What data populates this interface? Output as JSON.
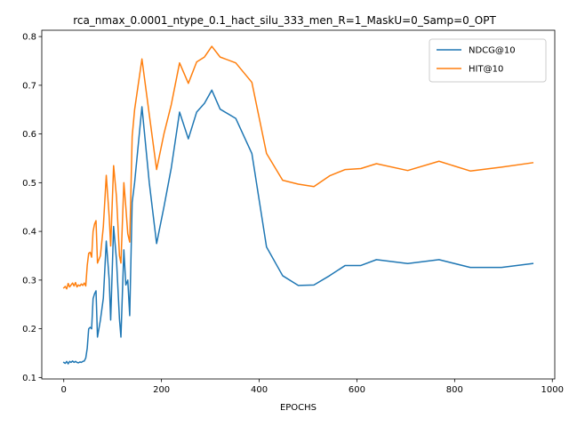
{
  "chart_data": {
    "type": "line",
    "title": "rca_nmax_0.0001_ntype_0.1_hact_silu_333_men_R=1_MaskU=0_Samp=0_OPT",
    "xlabel": "EPOCHS",
    "ylabel": "",
    "xlim": [
      -45,
      1005
    ],
    "ylim": [
      0.097,
      0.813
    ],
    "xticks": [
      0,
      200,
      400,
      600,
      800,
      1000
    ],
    "yticks": [
      0.1,
      0.2,
      0.3,
      0.4,
      0.5,
      0.6,
      0.7,
      0.8
    ],
    "xtick_labels": [
      "0",
      "200",
      "400",
      "600",
      "800",
      "1000"
    ],
    "ytick_labels": [
      "0.1",
      "0.2",
      "0.3",
      "0.4",
      "0.5",
      "0.6",
      "0.7",
      "0.8"
    ],
    "legend_position": "top-right",
    "grid": false,
    "series": [
      {
        "name": "NDCG@10",
        "color": "#1f77b4",
        "points": [
          [
            0,
            0.131
          ],
          [
            3,
            0.129
          ],
          [
            6,
            0.133
          ],
          [
            9,
            0.128
          ],
          [
            12,
            0.133
          ],
          [
            15,
            0.131
          ],
          [
            18,
            0.134
          ],
          [
            21,
            0.131
          ],
          [
            24,
            0.133
          ],
          [
            27,
            0.131
          ],
          [
            30,
            0.13
          ],
          [
            33,
            0.132
          ],
          [
            36,
            0.131
          ],
          [
            39,
            0.133
          ],
          [
            42,
            0.134
          ],
          [
            45,
            0.14
          ],
          [
            48,
            0.16
          ],
          [
            51,
            0.2
          ],
          [
            54,
            0.203
          ],
          [
            57,
            0.2
          ],
          [
            60,
            0.262
          ],
          [
            63,
            0.272
          ],
          [
            66,
            0.278
          ],
          [
            69,
            0.183
          ],
          [
            75,
            0.218
          ],
          [
            81,
            0.263
          ],
          [
            87,
            0.38
          ],
          [
            93,
            0.3
          ],
          [
            96,
            0.218
          ],
          [
            102,
            0.41
          ],
          [
            108,
            0.34
          ],
          [
            114,
            0.22
          ],
          [
            117,
            0.183
          ],
          [
            123,
            0.362
          ],
          [
            127,
            0.29
          ],
          [
            131,
            0.3
          ],
          [
            135,
            0.227
          ],
          [
            140,
            0.46
          ],
          [
            145,
            0.5
          ],
          [
            160,
            0.656
          ],
          [
            175,
            0.5
          ],
          [
            190,
            0.375
          ],
          [
            205,
            0.45
          ],
          [
            220,
            0.53
          ],
          [
            237,
            0.645
          ],
          [
            255,
            0.59
          ],
          [
            272,
            0.645
          ],
          [
            288,
            0.663
          ],
          [
            303,
            0.69
          ],
          [
            320,
            0.651
          ],
          [
            352,
            0.632
          ],
          [
            385,
            0.56
          ],
          [
            415,
            0.368
          ],
          [
            448,
            0.309
          ],
          [
            480,
            0.289
          ],
          [
            512,
            0.29
          ],
          [
            544,
            0.309
          ],
          [
            576,
            0.33
          ],
          [
            608,
            0.33
          ],
          [
            640,
            0.342
          ],
          [
            704,
            0.334
          ],
          [
            768,
            0.342
          ],
          [
            832,
            0.326
          ],
          [
            896,
            0.326
          ],
          [
            960,
            0.334
          ]
        ]
      },
      {
        "name": "HIT@10",
        "color": "#ff7f0e",
        "points": [
          [
            0,
            0.284
          ],
          [
            3,
            0.287
          ],
          [
            6,
            0.282
          ],
          [
            9,
            0.293
          ],
          [
            12,
            0.286
          ],
          [
            15,
            0.29
          ],
          [
            18,
            0.294
          ],
          [
            21,
            0.288
          ],
          [
            24,
            0.295
          ],
          [
            27,
            0.286
          ],
          [
            30,
            0.29
          ],
          [
            33,
            0.288
          ],
          [
            36,
            0.292
          ],
          [
            39,
            0.289
          ],
          [
            42,
            0.294
          ],
          [
            45,
            0.288
          ],
          [
            48,
            0.33
          ],
          [
            51,
            0.355
          ],
          [
            54,
            0.357
          ],
          [
            57,
            0.347
          ],
          [
            60,
            0.4
          ],
          [
            63,
            0.415
          ],
          [
            66,
            0.422
          ],
          [
            69,
            0.335
          ],
          [
            75,
            0.35
          ],
          [
            81,
            0.41
          ],
          [
            87,
            0.515
          ],
          [
            93,
            0.43
          ],
          [
            96,
            0.37
          ],
          [
            102,
            0.535
          ],
          [
            108,
            0.47
          ],
          [
            114,
            0.35
          ],
          [
            117,
            0.335
          ],
          [
            123,
            0.5
          ],
          [
            127,
            0.45
          ],
          [
            131,
            0.395
          ],
          [
            135,
            0.378
          ],
          [
            140,
            0.595
          ],
          [
            145,
            0.65
          ],
          [
            160,
            0.754
          ],
          [
            175,
            0.64
          ],
          [
            190,
            0.527
          ],
          [
            205,
            0.6
          ],
          [
            220,
            0.66
          ],
          [
            237,
            0.746
          ],
          [
            255,
            0.704
          ],
          [
            272,
            0.748
          ],
          [
            288,
            0.758
          ],
          [
            303,
            0.78
          ],
          [
            320,
            0.758
          ],
          [
            352,
            0.746
          ],
          [
            385,
            0.706
          ],
          [
            415,
            0.56
          ],
          [
            448,
            0.505
          ],
          [
            480,
            0.497
          ],
          [
            512,
            0.492
          ],
          [
            544,
            0.514
          ],
          [
            576,
            0.527
          ],
          [
            608,
            0.529
          ],
          [
            640,
            0.539
          ],
          [
            704,
            0.525
          ],
          [
            768,
            0.544
          ],
          [
            832,
            0.524
          ],
          [
            896,
            0.532
          ],
          [
            960,
            0.541
          ]
        ]
      }
    ]
  }
}
